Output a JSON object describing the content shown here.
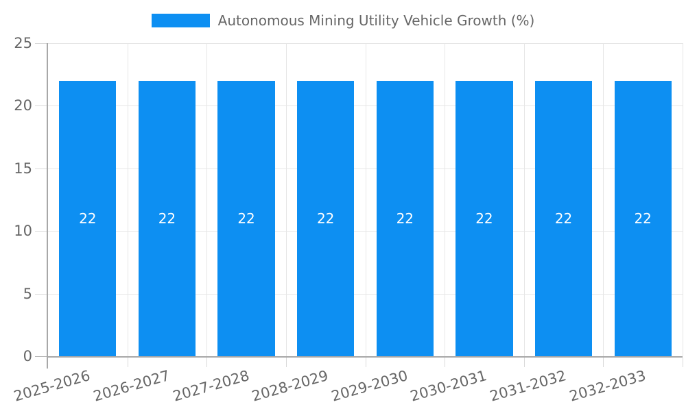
{
  "legend": {
    "label": "Autonomous Mining Utility Vehicle Growth (%)",
    "swatch_color": "#0d8ff2"
  },
  "colors": {
    "bar": "#0d8ff2",
    "grid": "#e6e6e6",
    "axis": "#a8a8a8",
    "text": "#666666",
    "bar_label": "#ffffff",
    "background": "#ffffff"
  },
  "chart_data": {
    "type": "bar",
    "title": "Autonomous Mining Utility Vehicle Growth (%)",
    "categories": [
      "2025-2026",
      "2026-2027",
      "2027-2028",
      "2028-2029",
      "2029-2030",
      "2030-2031",
      "2031-2032",
      "2032-2033"
    ],
    "values": [
      22,
      22,
      22,
      22,
      22,
      22,
      22,
      22
    ],
    "xlabel": "",
    "ylabel": "",
    "ylim": [
      0,
      25
    ],
    "yticks": [
      25,
      20,
      15,
      10,
      5,
      0
    ],
    "grid": true,
    "legend_position": "top",
    "value_labels": "inside-center",
    "x_label_rotation_deg": -16
  }
}
